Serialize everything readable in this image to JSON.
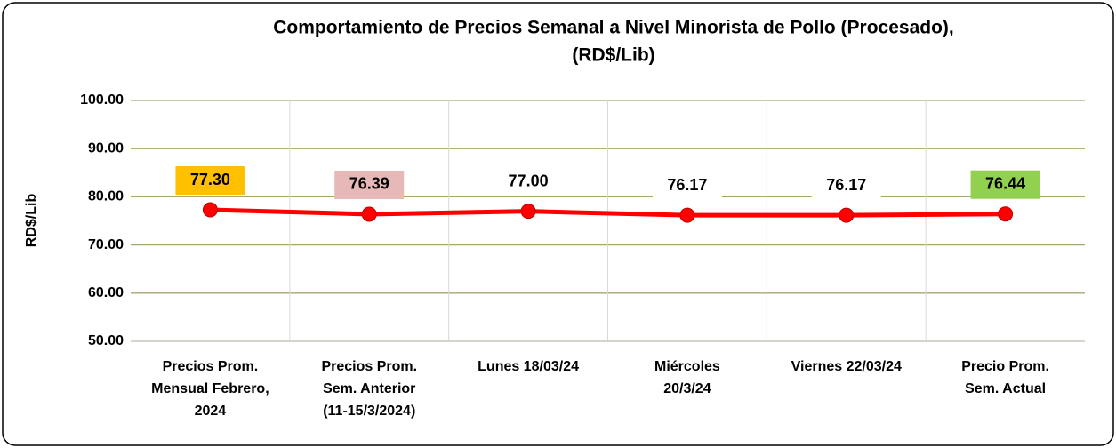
{
  "chart_data": {
    "type": "line",
    "title": [
      "Comportamiento de Precios Semanal a Nivel Minorista de Pollo (Procesado),",
      "(RD$/Lib)"
    ],
    "y_label": "RD$/Lib",
    "categories": [
      [
        "Precios Prom.",
        "Mensual Febrero,",
        "2024"
      ],
      [
        "Precios Prom.",
        "Sem. Anterior",
        "(11-15/3/2024)"
      ],
      [
        "Lunes  18/03/24"
      ],
      [
        "Miércoles",
        "20/3/24"
      ],
      [
        "Viernes 22/03/24"
      ],
      [
        "Precio Prom.",
        "Sem. Actual"
      ]
    ],
    "series": [
      {
        "name": null,
        "color": "#ff0000",
        "values": [
          77.3,
          76.39,
          77.0,
          76.17,
          76.17,
          76.44
        ],
        "value_labels": [
          "77.30",
          "76.39",
          "77.00",
          "76.17",
          "76.17",
          "76.44"
        ],
        "label_colors": [
          "#ffc000",
          "#e6b9b8",
          "#ffffff",
          "#ffffff",
          "#ffffff",
          "#92d050"
        ]
      }
    ],
    "ylim": [
      50,
      100
    ],
    "yticks": [
      {
        "value": 50,
        "label": "50.00"
      },
      {
        "value": 60,
        "label": "60.00"
      },
      {
        "value": 70,
        "label": "70.00"
      },
      {
        "value": 80,
        "label": "80.00"
      },
      {
        "value": 90,
        "label": "90.00"
      },
      {
        "value": 100,
        "label": "100.00"
      }
    ],
    "grid": true,
    "grid_color": "#a6a670"
  }
}
